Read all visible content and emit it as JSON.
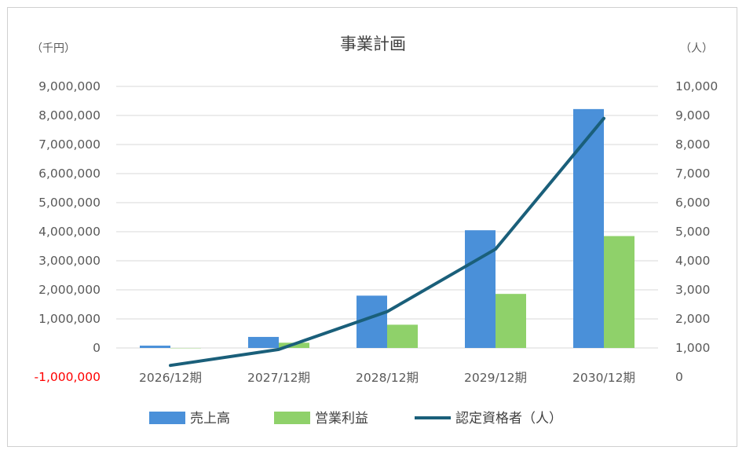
{
  "chart_data": {
    "type": "bar",
    "title": "事業計画",
    "unit_left": "（千円）",
    "unit_right": "（人）",
    "categories": [
      "2026/12期",
      "2027/12期",
      "2028/12期",
      "2029/12期",
      "2030/12期"
    ],
    "ylim_left": [
      -1000000,
      9000000
    ],
    "ylim_right": [
      0,
      10000
    ],
    "yticks_left": [
      {
        "value": 9000000,
        "label": "9,000,000"
      },
      {
        "value": 8000000,
        "label": "8,000,000"
      },
      {
        "value": 7000000,
        "label": "7,000,000"
      },
      {
        "value": 6000000,
        "label": "6,000,000"
      },
      {
        "value": 5000000,
        "label": "5,000,000"
      },
      {
        "value": 4000000,
        "label": "4,000,000"
      },
      {
        "value": 3000000,
        "label": "3,000,000"
      },
      {
        "value": 2000000,
        "label": "2,000,000"
      },
      {
        "value": 1000000,
        "label": "1,000,000"
      },
      {
        "value": 0,
        "label": "0"
      },
      {
        "value": -1000000,
        "label": "-1,000,000",
        "color": "#ff0000"
      }
    ],
    "yticks_right": [
      {
        "value": 10000,
        "label": "10,000"
      },
      {
        "value": 9000,
        "label": "9,000"
      },
      {
        "value": 8000,
        "label": "8,000"
      },
      {
        "value": 7000,
        "label": "7,000"
      },
      {
        "value": 6000,
        "label": "6,000"
      },
      {
        "value": 5000,
        "label": "5,000"
      },
      {
        "value": 4000,
        "label": "4,000"
      },
      {
        "value": 3000,
        "label": "3,000"
      },
      {
        "value": 2000,
        "label": "2,000"
      },
      {
        "value": 1000,
        "label": "1,000"
      },
      {
        "value": 0,
        "label": "0"
      }
    ],
    "grid": true,
    "legend_position": "bottom",
    "series": [
      {
        "name": "売上高",
        "type": "bar",
        "axis": "left",
        "color": "#4a90d9",
        "values": [
          80000,
          380000,
          1800000,
          4050000,
          8220000
        ]
      },
      {
        "name": "営業利益",
        "type": "bar",
        "axis": "left",
        "color": "#8fd16a",
        "values": [
          -10000,
          180000,
          800000,
          1860000,
          3850000
        ]
      },
      {
        "name": "認定資格者（人）",
        "type": "line",
        "axis": "right",
        "color": "#1a5f7a",
        "values": [
          400,
          950,
          2250,
          4400,
          8900
        ]
      }
    ]
  }
}
